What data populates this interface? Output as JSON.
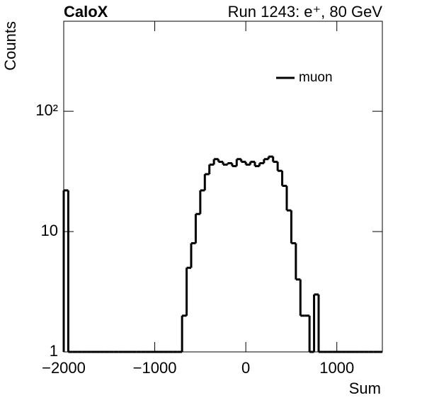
{
  "chart_data": {
    "type": "histogram",
    "title": "CaloX",
    "subtitle": "Run 1243: e⁺, 80 GeV",
    "x_label": "Sum",
    "y_label": "Counts",
    "log_y": true,
    "legend_position": "upper right",
    "series": [
      {
        "name": "muon",
        "color": "#000000",
        "values": [
          22,
          0,
          0,
          0,
          0,
          0,
          0,
          0,
          0,
          0,
          0,
          0,
          0,
          0,
          0,
          0,
          0,
          0,
          0,
          0,
          0,
          0,
          0,
          0,
          0,
          0,
          2,
          5,
          8,
          14,
          22,
          30,
          36,
          40,
          38,
          36,
          37,
          35,
          40,
          38,
          36,
          38,
          35,
          37,
          40,
          42,
          38,
          32,
          24,
          15,
          8,
          4,
          2,
          2,
          0,
          3,
          0,
          0,
          0,
          0,
          0,
          0,
          0,
          0,
          0,
          0,
          0,
          0,
          0,
          0
        ]
      }
    ],
    "bins": [
      -2000,
      -1950,
      -1900,
      -1850,
      -1800,
      -1750,
      -1700,
      -1650,
      -1600,
      -1550,
      -1500,
      -1450,
      -1400,
      -1350,
      -1300,
      -1250,
      -1200,
      -1150,
      -1100,
      -1050,
      -1000,
      -950,
      -900,
      -850,
      -800,
      -750,
      -700,
      -650,
      -600,
      -550,
      -500,
      -450,
      -400,
      -350,
      -300,
      -250,
      -200,
      -150,
      -100,
      -50,
      0,
      50,
      100,
      150,
      200,
      250,
      300,
      350,
      400,
      450,
      500,
      550,
      600,
      650,
      700,
      750,
      800,
      850,
      900,
      950,
      1000,
      1050,
      1100,
      1150,
      1200,
      1250,
      1300,
      1350,
      1400,
      1450,
      1500
    ],
    "xlim": [
      -2000,
      1500
    ],
    "xticks": [
      {
        "value": -2000,
        "label": "−2000"
      },
      {
        "value": -1000,
        "label": "−1000"
      },
      0,
      1000
    ],
    "ylim": [
      1,
      560
    ],
    "yticks": [
      1,
      10,
      {
        "value": 100,
        "label": "10²"
      }
    ]
  }
}
